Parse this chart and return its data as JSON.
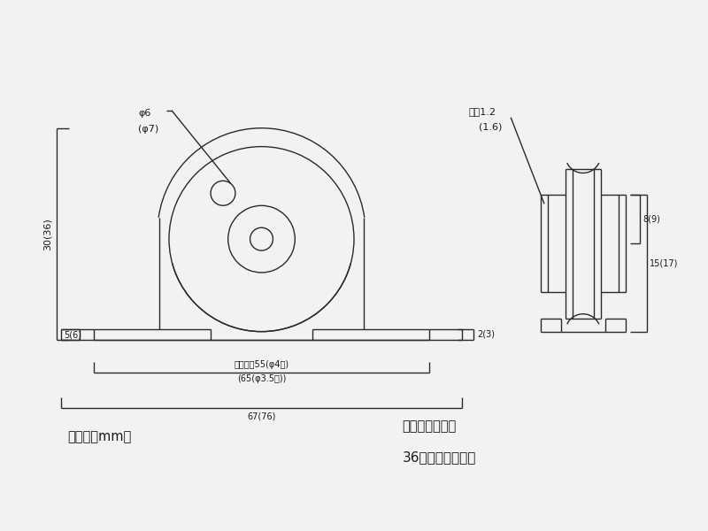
{
  "bg_color": "#f2f2f2",
  "line_color": "#2a2a2a",
  "text_color": "#1a1a1a",
  "fig_width": 8.0,
  "fig_height": 6.0,
  "annotations": {
    "phi6": "φ6",
    "phi7": "(φ7)",
    "plate_thickness": "板厚1.2",
    "plate_thickness2": "(1.6)",
    "dim_5": "5(6)",
    "dim_2": "2(3)",
    "hole_pitch": "穴ピッチ55(φ4穴)",
    "hole_pitch2": "(65(φ3.5穴))",
    "dim_67": "67(76)",
    "dim_30": "30(36)",
    "dim_8": "8(9)",
    "dim_15": "15(17)",
    "unit_note": "（単位：mm）",
    "size_note1": "（　）内は呼称",
    "size_note2": "36ミリの寸法です"
  }
}
